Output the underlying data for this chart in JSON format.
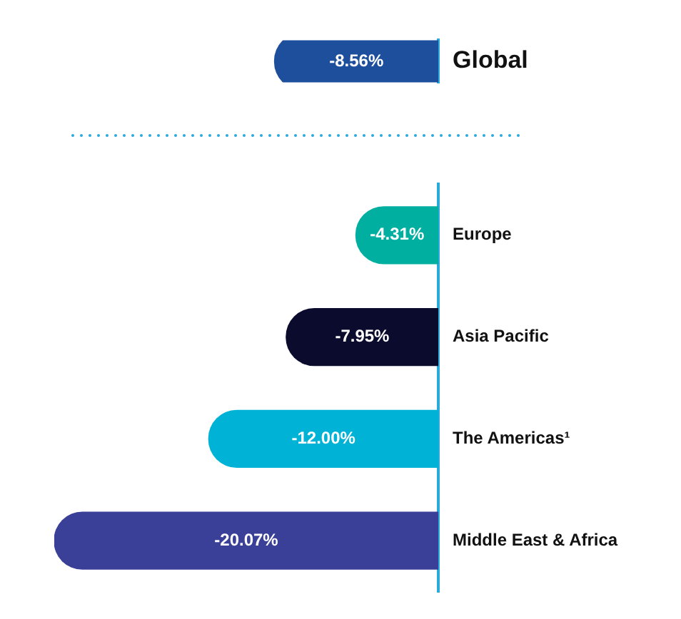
{
  "chart_data": [
    {
      "type": "bar",
      "orientation": "horizontal",
      "categories": [
        "Global"
      ],
      "values": [
        -8.56
      ],
      "colors": [
        "#1d4f9c"
      ],
      "value_labels": [
        "-8.56%"
      ],
      "legend": false
    },
    {
      "type": "bar",
      "orientation": "horizontal",
      "categories": [
        "Europe",
        "Asia Pacific",
        "The Americas¹",
        "Middle East & Africa"
      ],
      "values": [
        -4.31,
        -7.95,
        -12.0,
        -20.07
      ],
      "colors": [
        "#00afa0",
        "#0b0b2e",
        "#00b2d6",
        "#3a3f97"
      ],
      "value_labels": [
        "-4.31%",
        "-7.95%",
        "-12.00%",
        "-20.07%"
      ],
      "legend": false
    }
  ]
}
